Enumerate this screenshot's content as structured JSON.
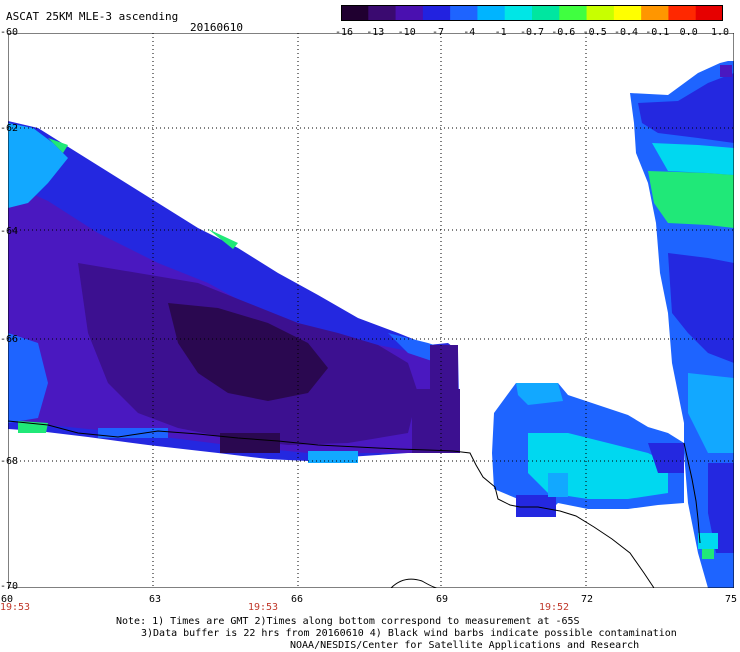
{
  "header": {
    "title": "ASCAT 25KM MLE-3 ascending",
    "date": "20160610"
  },
  "colorbar": {
    "labels": [
      "-16",
      "-13",
      "-10",
      "-7",
      "-4",
      "-1",
      "-0.7",
      "-0.6",
      "-0.5",
      "-0.4",
      "-0.1",
      "0.0",
      "1.0"
    ],
    "colors": [
      "#200030",
      "#3a0a70",
      "#4a10b0",
      "#2222e0",
      "#1e64ff",
      "#00b4ff",
      "#00e6e6",
      "#00e6a0",
      "#40ff40",
      "#c8ff00",
      "#ffff00",
      "#ff9600",
      "#ff2800",
      "#e60000"
    ]
  },
  "axes": {
    "lat_labels": [
      "-60",
      "-62",
      "-64",
      "-66",
      "-68",
      "-70"
    ],
    "lon_labels": [
      "60",
      "63",
      "66",
      "69",
      "72",
      "75"
    ],
    "time_labels": [
      "19:53",
      "19:53",
      "19:52"
    ]
  },
  "notes": {
    "line1": "Note: 1) Times are GMT 2)Times along bottom correspond to measurement at -65S",
    "line2": "3)Data buffer is 22 hrs from 20160610 4) Black wind barbs indicate possible contamination",
    "line3": "NOAA/NESDIS/Center for Satellite Applications and Research"
  },
  "palette": {
    "deep_purple": "#2a0850",
    "purple": "#3c1090",
    "violet": "#4a18c0",
    "blue": "#2428e0",
    "mid_blue": "#1e64ff",
    "light_blue": "#12a8ff",
    "cyan": "#00d8f0",
    "green": "#20e878"
  }
}
